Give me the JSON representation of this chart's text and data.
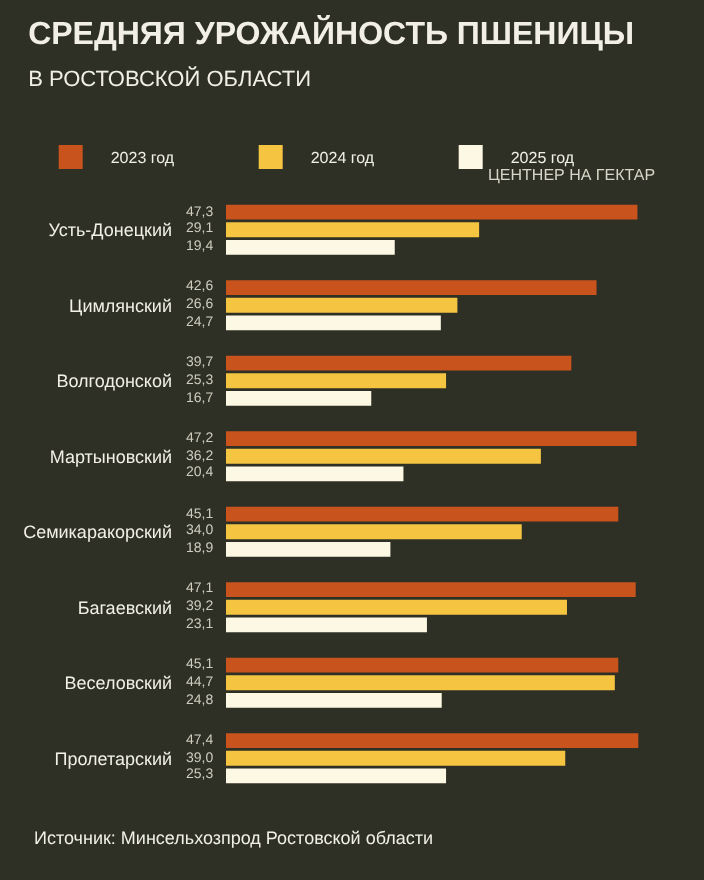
{
  "chart_data": {
    "type": "bar",
    "orientation": "horizontal",
    "title": "СРЕДНЯЯ УРОЖАЙНОСТЬ ПШЕНИЦЫ",
    "subtitle": "В РОСТОВСКОЙ ОБЛАСТИ",
    "xlabel": "ЦЕНТНЕР НА ГЕКТАР",
    "categories": [
      "Усть-Донецкий",
      "Цимлянский",
      "Волгодонской",
      "Мартыновский",
      "Семикаракорский",
      "Багаевский",
      "Веселовский",
      "Пролетарский"
    ],
    "series": [
      {
        "name": "2023 год",
        "color": "#c8531c",
        "values": [
          47.3,
          42.6,
          39.7,
          47.2,
          45.1,
          47.1,
          45.1,
          47.4
        ],
        "value_labels": [
          "47,3",
          "42,6",
          "39,7",
          "47,2",
          "45,1",
          "47,1",
          "45,1",
          "47,4"
        ]
      },
      {
        "name": "2024 год",
        "color": "#f5c542",
        "values": [
          29.1,
          26.6,
          25.3,
          36.2,
          34.0,
          39.2,
          44.7,
          39.0
        ],
        "value_labels": [
          "29,1",
          "26,6",
          "25,3",
          "36,2",
          "34,0",
          "39,2",
          "44,7",
          "39,0"
        ]
      },
      {
        "name": "2025 год",
        "color": "#fdf8e4",
        "values": [
          19.4,
          24.7,
          16.7,
          20.4,
          18.9,
          23.1,
          24.8,
          25.3
        ],
        "value_labels": [
          "19,4",
          "24,7",
          "16,7",
          "20,4",
          "18,9",
          "23,1",
          "24,8",
          "25,3"
        ]
      }
    ],
    "legend": "top left",
    "grid": false,
    "tick_labels": "y",
    "annotations": [
      "Источник: Минсельхозпрод Ростовской области"
    ]
  }
}
